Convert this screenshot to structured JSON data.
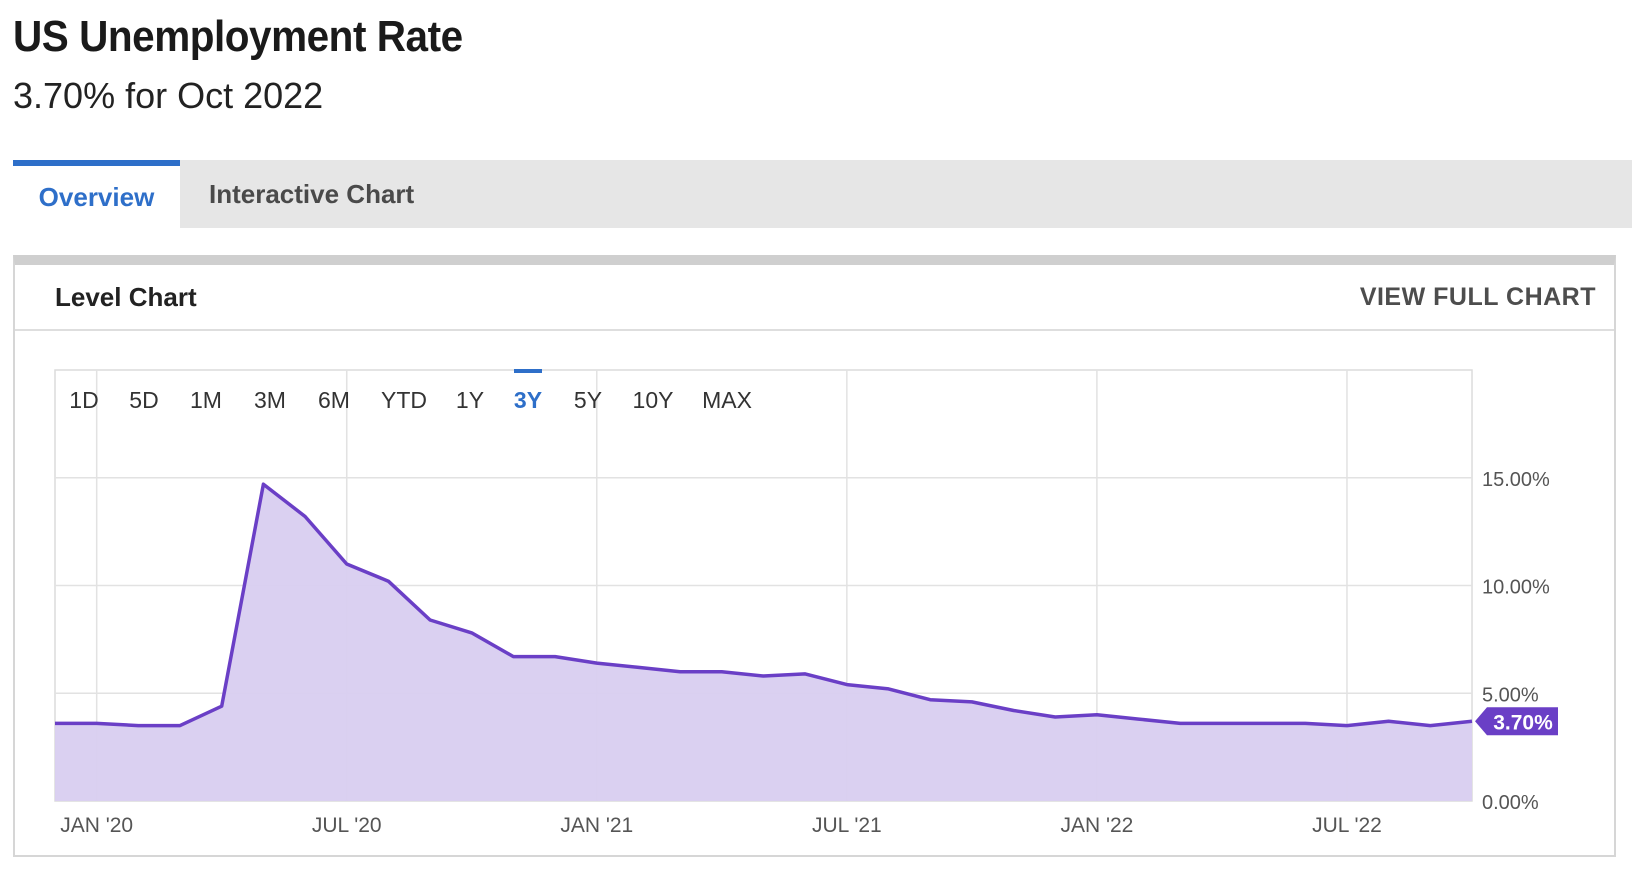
{
  "header": {
    "title": "US Unemployment Rate",
    "subtitle": "3.70% for Oct 2022"
  },
  "tabs": [
    {
      "label": "Overview",
      "active": true
    },
    {
      "label": "Interactive Chart",
      "active": false
    }
  ],
  "card": {
    "title": "Level Chart",
    "view_full_label": "VIEW FULL CHART"
  },
  "range_buttons": [
    "1D",
    "5D",
    "1M",
    "3M",
    "6M",
    "YTD",
    "1Y",
    "3Y",
    "5Y",
    "10Y",
    "MAX"
  ],
  "active_range": "3Y",
  "colors": {
    "accent": "#2e6fc9",
    "line": "#6a3fc6",
    "fill": "#d8cdf0",
    "badge": "#6a3fc6"
  },
  "chart_data": {
    "type": "area",
    "title": "US Unemployment Rate",
    "xlabel": "",
    "ylabel": "",
    "ylim": [
      0,
      20
    ],
    "x_ticks": [
      "JAN '20",
      "JUL '20",
      "JAN '21",
      "JUL '21",
      "JAN '22",
      "JUL '22"
    ],
    "y_ticks": [
      "0.00%",
      "5.00%",
      "10.00%",
      "15.00%"
    ],
    "y_tick_values": [
      0,
      5,
      10,
      15
    ],
    "current_value_label": "3.70%",
    "series": [
      {
        "name": "US Unemployment Rate",
        "x": [
          "Dec 2019",
          "Jan 2020",
          "Feb 2020",
          "Mar 2020",
          "Apr 2020",
          "May 2020",
          "Jun 2020",
          "Jul 2020",
          "Aug 2020",
          "Sep 2020",
          "Oct 2020",
          "Nov 2020",
          "Dec 2020",
          "Jan 2021",
          "Feb 2021",
          "Mar 2021",
          "Apr 2021",
          "May 2021",
          "Jun 2021",
          "Jul 2021",
          "Aug 2021",
          "Sep 2021",
          "Oct 2021",
          "Nov 2021",
          "Dec 2021",
          "Jan 2022",
          "Feb 2022",
          "Mar 2022",
          "Apr 2022",
          "May 2022",
          "Jun 2022",
          "Jul 2022",
          "Aug 2022",
          "Sep 2022",
          "Oct 2022"
        ],
        "values": [
          3.6,
          3.6,
          3.5,
          3.5,
          4.4,
          14.7,
          13.2,
          11.0,
          10.2,
          8.4,
          7.8,
          6.7,
          6.7,
          6.4,
          6.2,
          6.0,
          6.0,
          5.8,
          5.9,
          5.4,
          5.2,
          4.7,
          4.6,
          4.2,
          3.9,
          4.0,
          3.8,
          3.6,
          3.6,
          3.6,
          3.6,
          3.5,
          3.7,
          3.5,
          3.7
        ]
      }
    ]
  }
}
